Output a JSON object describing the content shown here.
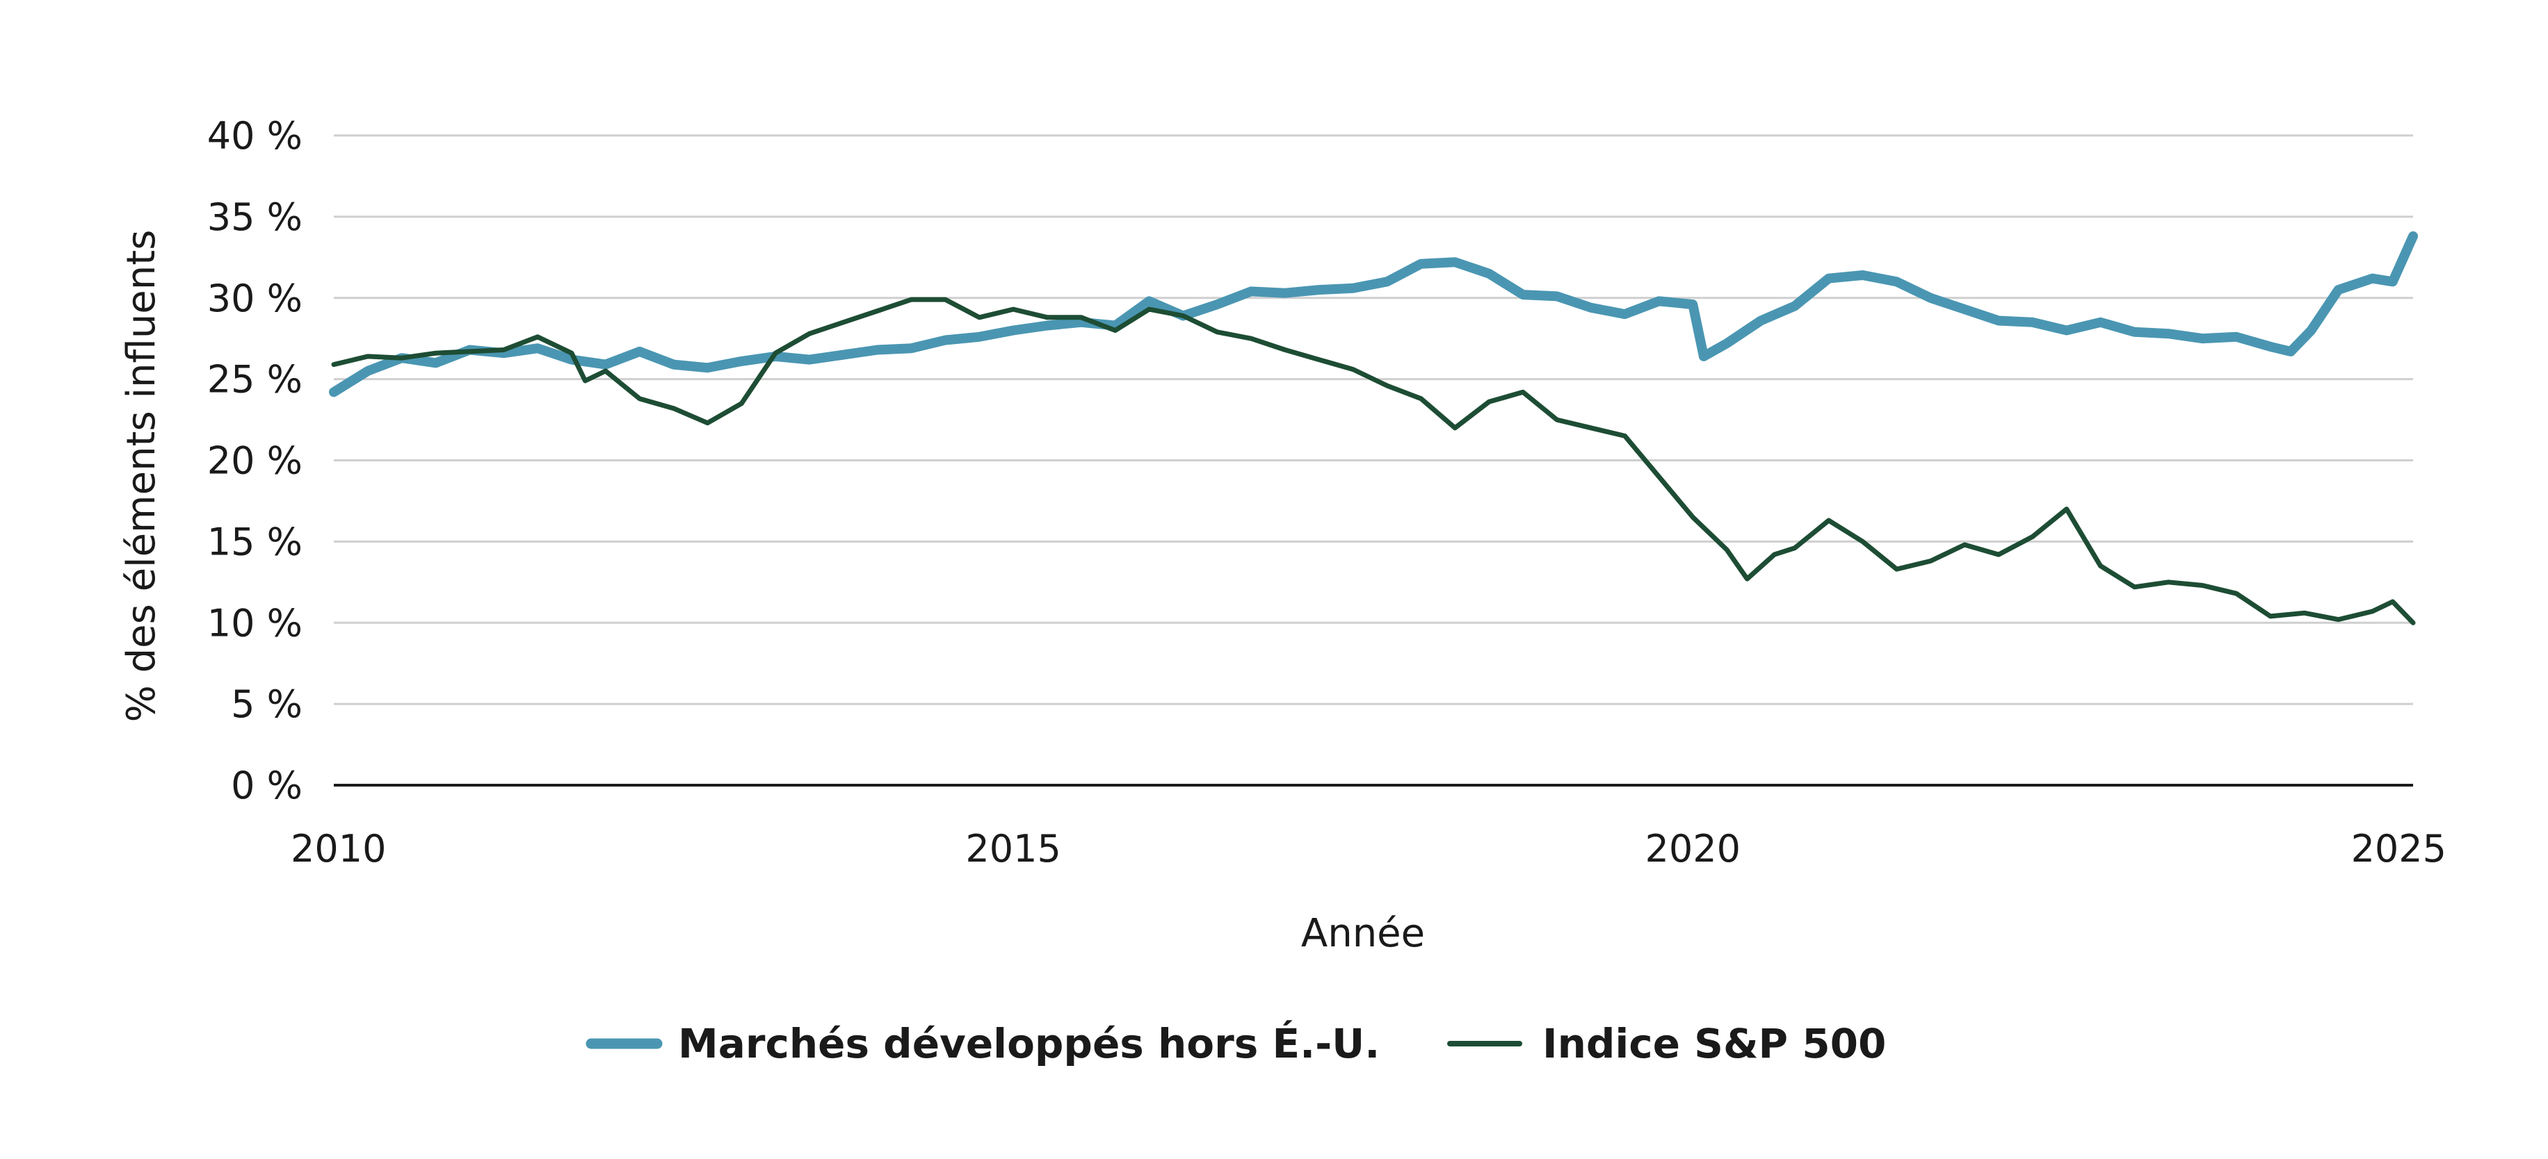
{
  "colors": {
    "series_1": "#4a96b2",
    "series_2": "#1d4d34",
    "grid": "#cfcfcf",
    "axis": "#1a1a1a"
  },
  "chart_data": {
    "type": "line",
    "title": "",
    "xlabel": "Année",
    "ylabel": "% des éléments influents",
    "xlim": [
      2010,
      2025.3
    ],
    "ylim": [
      0,
      40
    ],
    "x_ticks": [
      2010,
      2015,
      2020,
      2025
    ],
    "x_tick_labels": [
      "2010",
      "2015",
      "2020",
      "2025"
    ],
    "y_ticks": [
      0,
      5,
      10,
      15,
      20,
      25,
      30,
      35,
      40
    ],
    "y_tick_labels": [
      "0 %",
      "5 %",
      "10 %",
      "15 %",
      "20 %",
      "25 %",
      "30 %",
      "35 %",
      "40 %"
    ],
    "grid": true,
    "legend_position": "bottom-center",
    "series": [
      {
        "name": "Marchés développés hors É.-U.",
        "color": "#4a96b2",
        "points": [
          [
            2010.0,
            24.2
          ],
          [
            2010.25,
            25.5
          ],
          [
            2010.5,
            26.3
          ],
          [
            2010.75,
            26.0
          ],
          [
            2011.0,
            26.8
          ],
          [
            2011.25,
            26.6
          ],
          [
            2011.5,
            26.9
          ],
          [
            2011.75,
            26.2
          ],
          [
            2012.0,
            25.9
          ],
          [
            2012.25,
            26.7
          ],
          [
            2012.5,
            25.9
          ],
          [
            2012.75,
            25.7
          ],
          [
            2013.0,
            26.1
          ],
          [
            2013.25,
            26.4
          ],
          [
            2013.5,
            26.2
          ],
          [
            2013.75,
            26.5
          ],
          [
            2014.0,
            26.8
          ],
          [
            2014.25,
            26.9
          ],
          [
            2014.5,
            27.4
          ],
          [
            2014.75,
            27.6
          ],
          [
            2015.0,
            28.0
          ],
          [
            2015.25,
            28.3
          ],
          [
            2015.5,
            28.5
          ],
          [
            2015.75,
            28.3
          ],
          [
            2016.0,
            29.8
          ],
          [
            2016.25,
            28.9
          ],
          [
            2016.5,
            29.6
          ],
          [
            2016.75,
            30.4
          ],
          [
            2017.0,
            30.3
          ],
          [
            2017.25,
            30.5
          ],
          [
            2017.5,
            30.6
          ],
          [
            2017.75,
            31.0
          ],
          [
            2018.0,
            32.1
          ],
          [
            2018.25,
            32.2
          ],
          [
            2018.5,
            31.5
          ],
          [
            2018.75,
            30.2
          ],
          [
            2019.0,
            30.1
          ],
          [
            2019.25,
            29.4
          ],
          [
            2019.5,
            29.0
          ],
          [
            2019.75,
            29.8
          ],
          [
            2020.0,
            29.6
          ],
          [
            2020.08,
            26.4
          ],
          [
            2020.25,
            27.2
          ],
          [
            2020.5,
            28.6
          ],
          [
            2020.75,
            29.5
          ],
          [
            2021.0,
            31.2
          ],
          [
            2021.25,
            31.4
          ],
          [
            2021.5,
            31.0
          ],
          [
            2021.75,
            30.0
          ],
          [
            2022.0,
            29.3
          ],
          [
            2022.25,
            28.6
          ],
          [
            2022.5,
            28.5
          ],
          [
            2022.75,
            28.0
          ],
          [
            2023.0,
            28.5
          ],
          [
            2023.25,
            27.9
          ],
          [
            2023.5,
            27.8
          ],
          [
            2023.75,
            27.5
          ],
          [
            2024.0,
            27.6
          ],
          [
            2024.25,
            27.0
          ],
          [
            2024.4,
            26.7
          ],
          [
            2024.55,
            28.0
          ],
          [
            2024.75,
            30.5
          ],
          [
            2025.0,
            31.2
          ],
          [
            2025.15,
            31.0
          ],
          [
            2025.3,
            33.8
          ]
        ]
      },
      {
        "name": "Indice S&P 500",
        "color": "#1d4d34",
        "points": [
          [
            2010.0,
            25.9
          ],
          [
            2010.25,
            26.4
          ],
          [
            2010.5,
            26.3
          ],
          [
            2010.75,
            26.6
          ],
          [
            2011.0,
            26.7
          ],
          [
            2011.25,
            26.8
          ],
          [
            2011.5,
            27.6
          ],
          [
            2011.75,
            26.6
          ],
          [
            2011.85,
            24.9
          ],
          [
            2012.0,
            25.5
          ],
          [
            2012.25,
            23.8
          ],
          [
            2012.5,
            23.2
          ],
          [
            2012.75,
            22.3
          ],
          [
            2013.0,
            23.5
          ],
          [
            2013.25,
            26.6
          ],
          [
            2013.5,
            27.8
          ],
          [
            2013.75,
            28.5
          ],
          [
            2014.0,
            29.2
          ],
          [
            2014.25,
            29.9
          ],
          [
            2014.5,
            29.9
          ],
          [
            2014.75,
            28.8
          ],
          [
            2015.0,
            29.3
          ],
          [
            2015.25,
            28.8
          ],
          [
            2015.5,
            28.8
          ],
          [
            2015.75,
            28.0
          ],
          [
            2016.0,
            29.3
          ],
          [
            2016.25,
            28.9
          ],
          [
            2016.5,
            27.9
          ],
          [
            2016.75,
            27.5
          ],
          [
            2017.0,
            26.8
          ],
          [
            2017.25,
            26.2
          ],
          [
            2017.5,
            25.6
          ],
          [
            2017.75,
            24.6
          ],
          [
            2018.0,
            23.8
          ],
          [
            2018.25,
            22.0
          ],
          [
            2018.5,
            23.6
          ],
          [
            2018.75,
            24.2
          ],
          [
            2019.0,
            22.5
          ],
          [
            2019.25,
            22.0
          ],
          [
            2019.5,
            21.5
          ],
          [
            2019.75,
            19.0
          ],
          [
            2020.0,
            16.5
          ],
          [
            2020.25,
            14.5
          ],
          [
            2020.4,
            12.7
          ],
          [
            2020.6,
            14.2
          ],
          [
            2020.75,
            14.6
          ],
          [
            2021.0,
            16.3
          ],
          [
            2021.25,
            15.0
          ],
          [
            2021.5,
            13.3
          ],
          [
            2021.75,
            13.8
          ],
          [
            2022.0,
            14.8
          ],
          [
            2022.25,
            14.2
          ],
          [
            2022.5,
            15.3
          ],
          [
            2022.75,
            17.0
          ],
          [
            2023.0,
            13.5
          ],
          [
            2023.25,
            12.2
          ],
          [
            2023.5,
            12.5
          ],
          [
            2023.75,
            12.3
          ],
          [
            2024.0,
            11.8
          ],
          [
            2024.25,
            10.4
          ],
          [
            2024.5,
            10.6
          ],
          [
            2024.75,
            10.2
          ],
          [
            2025.0,
            10.7
          ],
          [
            2025.15,
            11.3
          ],
          [
            2025.3,
            10.0
          ]
        ]
      }
    ]
  }
}
